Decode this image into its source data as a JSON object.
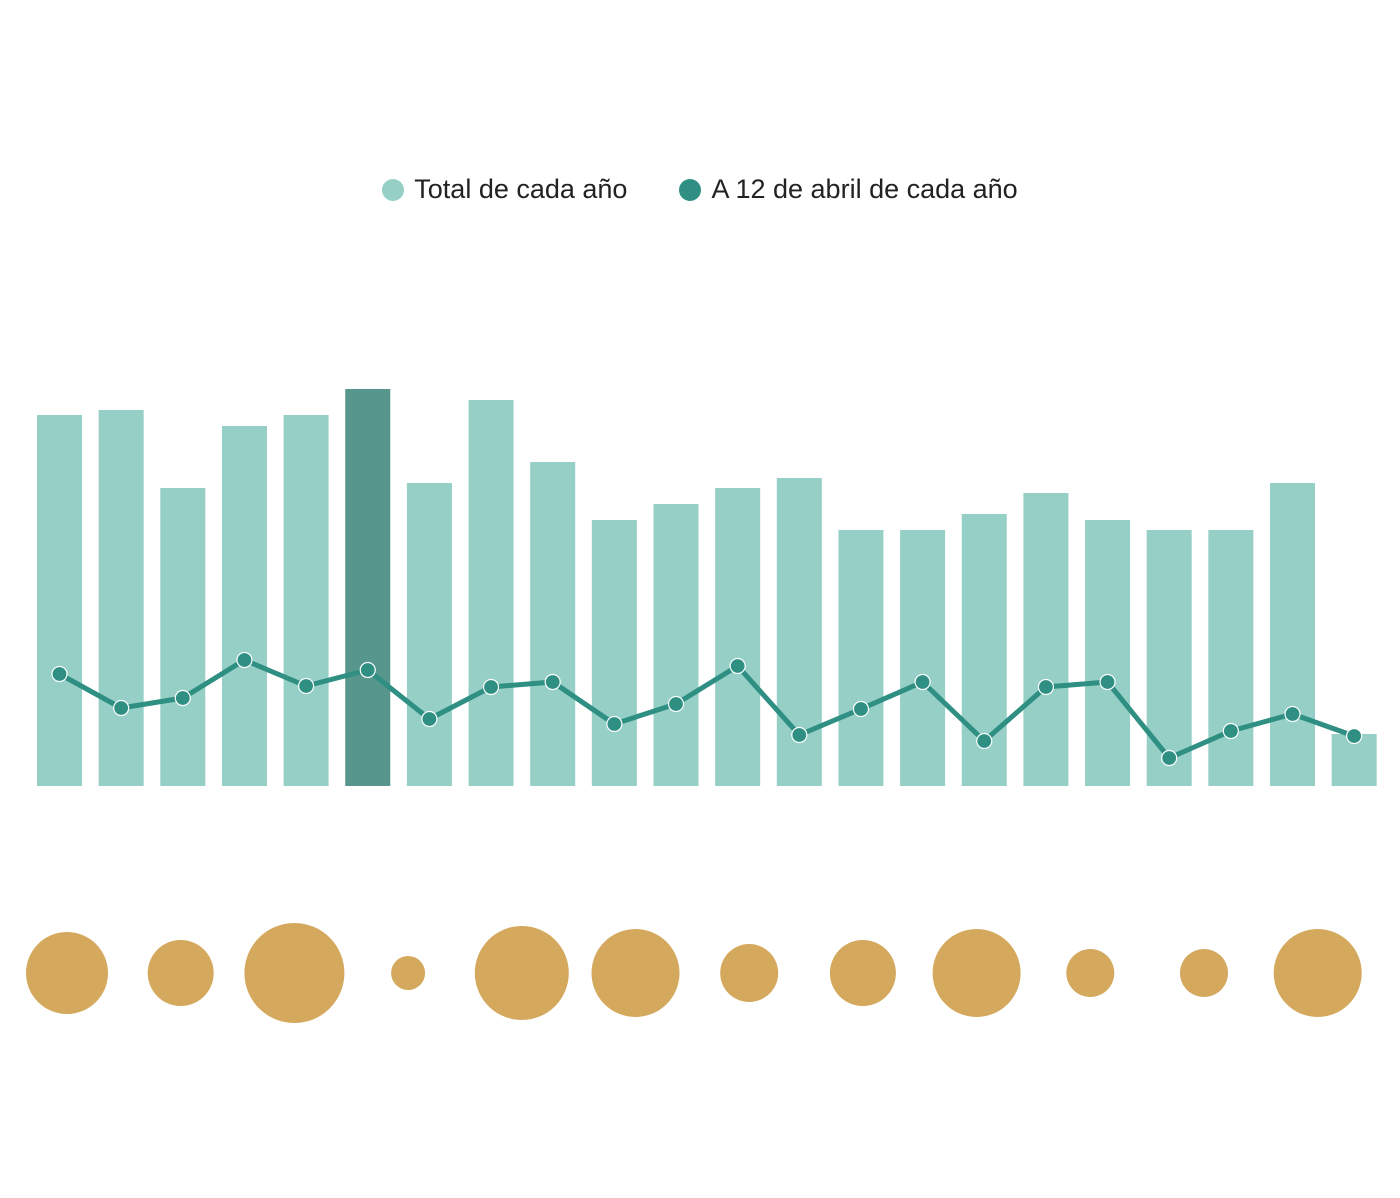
{
  "chart_data": {
    "type": "bar",
    "title": "",
    "xlabel": "",
    "ylabel": "",
    "ylim": [
      0,
      400
    ],
    "highlight_index": 5,
    "legend_position": "top-center",
    "series": [
      {
        "name": "Total de cada año",
        "type": "bar",
        "color": "#95cfc6",
        "highlight_color": "#56968c",
        "values": [
          371,
          376,
          298,
          360,
          371,
          397,
          303,
          386,
          324,
          266,
          282,
          298,
          308,
          256,
          256,
          272,
          293,
          266,
          256,
          256,
          303,
          52
        ]
      },
      {
        "name": "A 12 de abril de cada año",
        "type": "line",
        "color": "#2e8f82",
        "values": [
          112,
          78,
          88,
          126,
          100,
          116,
          67,
          99,
          104,
          62,
          82,
          120,
          51,
          77,
          104,
          45,
          99,
          104,
          28,
          55,
          72,
          50
        ]
      }
    ],
    "bubbles": {
      "type": "bubble",
      "color": "#d4a85d",
      "sizes": [
        41,
        33,
        50,
        17,
        47,
        44,
        29,
        33,
        44,
        24,
        24,
        44
      ]
    }
  }
}
